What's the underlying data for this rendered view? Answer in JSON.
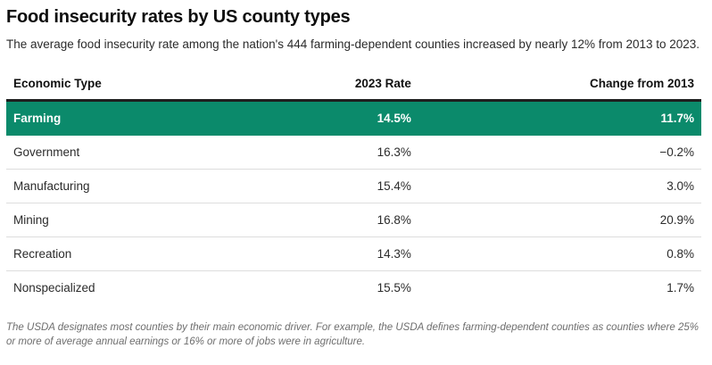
{
  "header": {
    "title": "Food insecurity rates by US county types",
    "subtitle": "The average food insecurity rate among the nation's 444 farming-dependent counties increased by nearly 12% from 2013 to 2023."
  },
  "table": {
    "columns": [
      "Economic Type",
      "2023 Rate",
      "Change from 2013"
    ],
    "rows": [
      {
        "type": "Farming",
        "rate_2023": "14.5%",
        "change": "11.7%",
        "highlighted": true
      },
      {
        "type": "Government",
        "rate_2023": "16.3%",
        "change": "−0.2%",
        "highlighted": false
      },
      {
        "type": "Manufacturing",
        "rate_2023": "15.4%",
        "change": "3.0%",
        "highlighted": false
      },
      {
        "type": "Mining",
        "rate_2023": "16.8%",
        "change": "20.9%",
        "highlighted": false
      },
      {
        "type": "Recreation",
        "rate_2023": "14.3%",
        "change": "0.8%",
        "highlighted": false
      },
      {
        "type": "Nonspecialized",
        "rate_2023": "15.5%",
        "change": "1.7%",
        "highlighted": false
      }
    ]
  },
  "footnote": "The USDA designates most counties by their main economic driver. For example, the USDA defines farming-dependent counties as counties where 25% or more of average annual earnings or 16% or more of jobs were in agriculture.",
  "colors": {
    "highlight_green": "#0b8a6b",
    "header_border": "#1f1f1f",
    "row_divider": "#dddddd",
    "footnote_gray": "#6e6e6e"
  },
  "chart_data": {
    "type": "table",
    "title": "Food insecurity rates by US county types",
    "subtitle": "The average food insecurity rate among the nation's 444 farming-dependent counties increased by nearly 12% from 2013 to 2023.",
    "columns": [
      "Economic Type",
      "2023 Rate",
      "Change from 2013"
    ],
    "rows": [
      [
        "Farming",
        14.5,
        11.7
      ],
      [
        "Government",
        16.3,
        -0.2
      ],
      [
        "Manufacturing",
        15.4,
        3.0
      ],
      [
        "Mining",
        16.8,
        20.9
      ],
      [
        "Recreation",
        14.3,
        0.8
      ],
      [
        "Nonspecialized",
        15.5,
        1.7
      ]
    ],
    "units": "percent",
    "highlighted_row": "Farming",
    "footnote": "The USDA designates most counties by their main economic driver. For example, the USDA defines farming-dependent counties as counties where 25% or more of average annual earnings or 16% or more of jobs were in agriculture."
  }
}
